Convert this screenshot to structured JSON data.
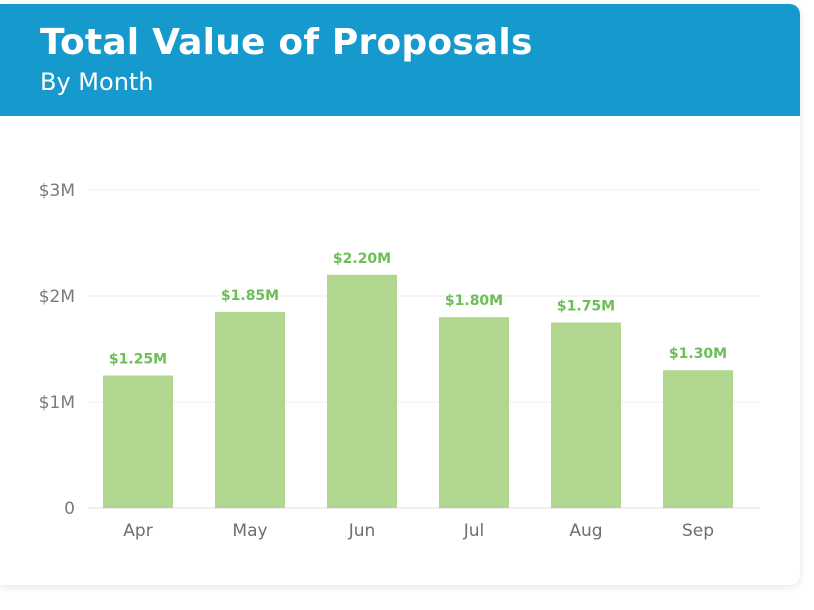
{
  "header": {
    "title": "Total Value of Proposals",
    "subtitle": "By Month"
  },
  "colors": {
    "header_bg": "#1699cc",
    "bar": "#b0d68f",
    "data_label": "#6bbf56",
    "grid": "#ececec"
  },
  "chart_data": {
    "type": "bar",
    "categories": [
      "Apr",
      "May",
      "Jun",
      "Jul",
      "Aug",
      "Sep"
    ],
    "values": [
      1.25,
      1.85,
      2.2,
      1.8,
      1.75,
      1.3
    ],
    "data_labels": [
      "$1.25M",
      "$1.85M",
      "$2.20M",
      "$1.80M",
      "$1.75M",
      "$1.30M"
    ],
    "ylim": [
      0,
      3
    ],
    "yticks": [
      0,
      1,
      2,
      3
    ],
    "ytick_labels": [
      "0",
      "$1M",
      "$2M",
      "$3M"
    ],
    "grid": true,
    "legend": "none"
  }
}
